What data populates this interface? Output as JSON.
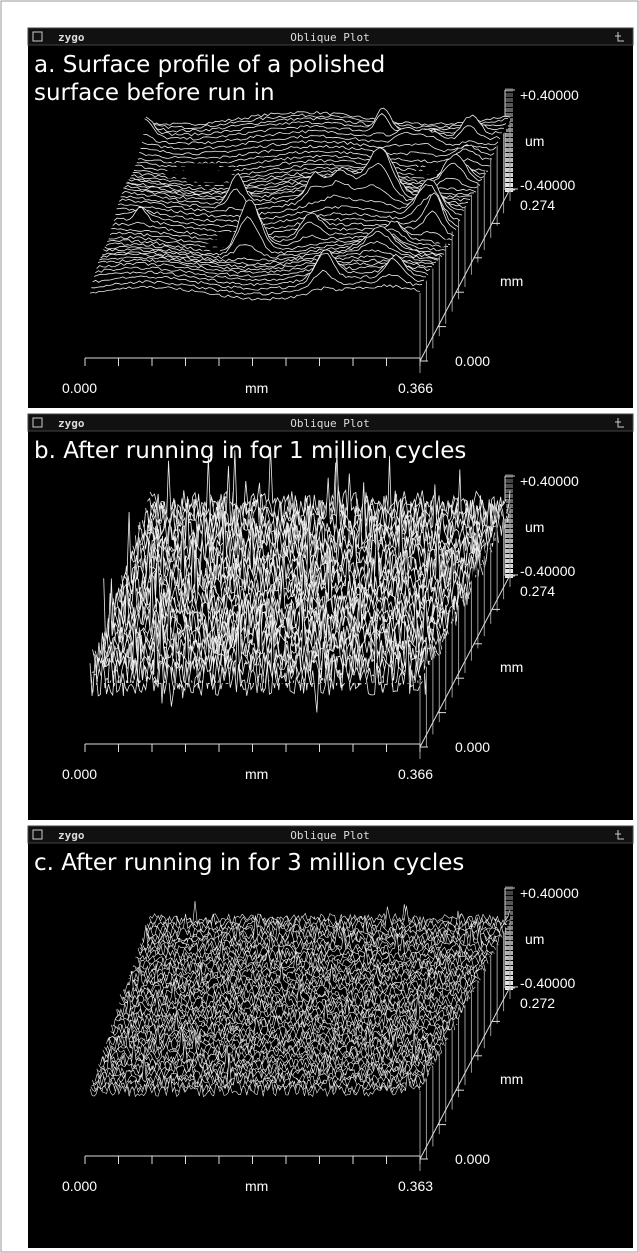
{
  "panels": [
    {
      "titlebar": {
        "logo": "zygo",
        "title": "Oblique Plot"
      },
      "caption": "a. Surface profile of a polished surface before run in",
      "z_max": "+0.40000",
      "z_unit": "um",
      "z_min": "-0.40000",
      "y_max": "0.274",
      "y_unit": "mm",
      "y_min": "0.000",
      "x_min": "0.000",
      "x_unit": "mm",
      "x_max": "0.366"
    },
    {
      "titlebar": {
        "logo": "zygo",
        "title": "Oblique Plot"
      },
      "caption": "b. After running in for 1 million cycles",
      "z_max": "+0.40000",
      "z_unit": "um",
      "z_min": "-0.40000",
      "y_max": "0.274",
      "y_unit": "mm",
      "y_min": "0.000",
      "x_min": "0.000",
      "x_unit": "mm",
      "x_max": "0.366"
    },
    {
      "titlebar": {
        "logo": "zygo",
        "title": "Oblique Plot"
      },
      "caption": "c. After running in for 3 million cycles",
      "z_max": "+0.40000",
      "z_unit": "um",
      "z_min": "-0.40000",
      "y_max": "0.272",
      "y_unit": "mm",
      "y_min": "0.000",
      "x_min": "0.000",
      "x_unit": "mm",
      "x_max": "0.363"
    }
  ]
}
